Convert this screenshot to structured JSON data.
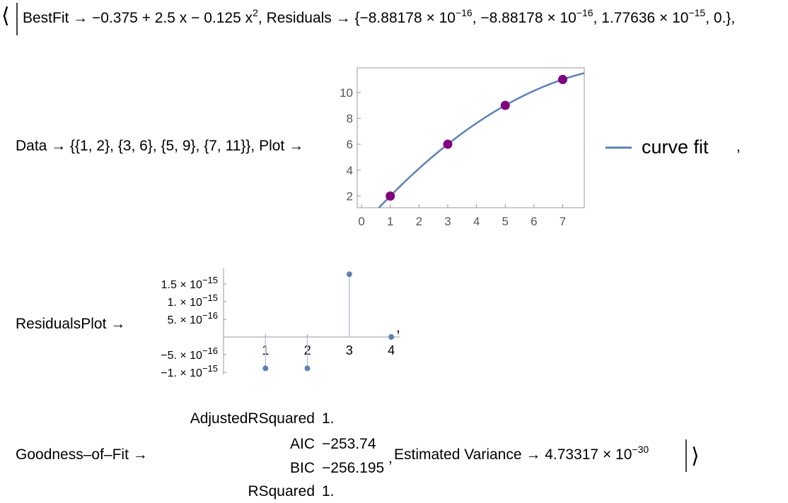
{
  "open": "⟨",
  "close": "⟩",
  "line1": {
    "segments": [
      {
        "t": "BestFit → −0.375 + 2.5 x − 0.125 x",
        "sup": "2"
      },
      {
        "t": ", Residuals → {−8.88178 × 10",
        "sup": "−16"
      },
      {
        "t": ", −8.88178 × 10",
        "sup": "−16"
      },
      {
        "t": ", 1.77636 × 10",
        "sup": "−15"
      },
      {
        "t": ", 0.},"
      }
    ]
  },
  "line2": {
    "segments": [
      {
        "t": "Data → {{1, 2}, {3, 6}, {5, 9}, {7, 11}}, Plot →"
      }
    ],
    "trailer": ","
  },
  "fit_plot": {
    "type": "scatter",
    "x": [
      1,
      3,
      5,
      7
    ],
    "y": [
      2,
      6,
      9,
      11
    ],
    "color": "#800080",
    "fit": {
      "name": "curve fit",
      "coefficients": [
        -0.375,
        2.5,
        -0.125
      ],
      "color": "#5e81b5"
    },
    "xlim": [
      -0.15,
      7.75
    ],
    "ylim": [
      1.1,
      11.9
    ],
    "xticks": [
      0,
      1,
      2,
      3,
      4,
      5,
      6,
      7
    ],
    "yticks": [
      2,
      4,
      6,
      8,
      10
    ]
  },
  "line3": {
    "segments": [
      {
        "t": "ResidualsPlot →"
      }
    ],
    "trailer": ","
  },
  "residuals_plot": {
    "type": "stem",
    "x": [
      1,
      2,
      3,
      4
    ],
    "values": [
      -8.88178e-16,
      -8.88178e-16,
      1.77636e-15,
      0
    ],
    "color": "#5e81b5",
    "xlim": [
      0,
      4.2
    ],
    "ylim": [
      -1.06e-15,
      1.94e-15
    ],
    "xticks": [
      1,
      2,
      3,
      4
    ],
    "yticks": [
      {
        "value": 1.5e-15,
        "label": "1.5 × 10",
        "exponent": "−15"
      },
      {
        "value": 1e-15,
        "label": "1. × 10",
        "exponent": "−15"
      },
      {
        "value": 5e-16,
        "label": "5. × 10",
        "exponent": "−16"
      },
      {
        "value": -5e-16,
        "label": "−5. × 10",
        "exponent": "−16"
      },
      {
        "value": -1e-15,
        "label": "−1. × 10",
        "exponent": "−15"
      }
    ]
  },
  "line4": {
    "segments": [
      {
        "t": "Goodness–of–Fit →"
      }
    ]
  },
  "goodness_of_fit": {
    "rows": [
      [
        "AdjustedRSquared",
        "1."
      ],
      [
        "AIC",
        "−253.74"
      ],
      [
        "BIC",
        "−256.195"
      ],
      [
        "RSquared",
        "1."
      ]
    ],
    "trailer": ","
  },
  "variance": {
    "segments": [
      {
        "t": "Estimated Variance → 4.73317 × 10",
        "sup": "−30"
      }
    ]
  }
}
